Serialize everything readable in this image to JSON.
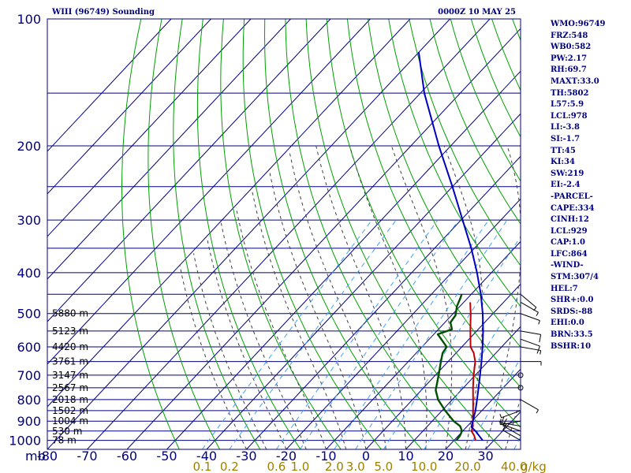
{
  "header": {
    "station": "WIII (96749) Sounding",
    "time": "0000Z 10 MAY 25"
  },
  "indices": [
    "WMO:96749",
    "FRZ:548",
    "WB0:582",
    "PW:2.17",
    "RH:69.7",
    "MAXT:33.0",
    "TH:5802",
    "L57:5.9",
    "LCL:978",
    "LI:-3.8",
    "SI:-1.7",
    "TT:45",
    "KI:34",
    "SW:219",
    "EI:-2.4",
    "-PARCEL-",
    "CAPE:334",
    "CINH:12",
    "LCL:929",
    "CAP:1.0",
    "LFC:864",
    "-WIND-",
    "STM:307/4",
    "HEL:7",
    "SHR+:0.0",
    "SRDS:-88",
    "EHI:0.0",
    "BRN:33.5",
    "BSHR:10"
  ],
  "colors": {
    "frame": "#000080",
    "isotherm": "#000080",
    "isobar": "#000080",
    "dry_adiabat": "#00a000",
    "moist_adiabat": "#404040",
    "mixing_ratio": "#40a0ff",
    "temperature": "#c00000",
    "dewpoint": "#005000",
    "parcel": "#0000c0",
    "wind": "#000000",
    "axis_text": "#000080",
    "mixing_text": "#a08000"
  },
  "chart_data": {
    "type": "line",
    "skew": "skew-T log-p",
    "xlabel": "",
    "ylabel": "mb",
    "pressure_ticks": [
      100,
      200,
      300,
      400,
      500,
      600,
      700,
      800,
      900,
      1000
    ],
    "pressure_range": [
      100,
      1050
    ],
    "temperature_ticks": [
      -80,
      -70,
      -60,
      -50,
      -40,
      -30,
      -20,
      -10,
      0,
      10,
      20,
      30
    ],
    "temperature_unit": "°C",
    "isobars": [
      100,
      150,
      200,
      250,
      300,
      350,
      400,
      450,
      500,
      550,
      600,
      650,
      700,
      750,
      800,
      850,
      900,
      950,
      1000
    ],
    "mixing_ratio_label": "g/kg",
    "mixing_ratio_ticks": [
      "0.1",
      "0.2",
      "0.6",
      "1.0",
      "2.0",
      "3.0",
      "5.0",
      "10.0",
      "20.0",
      "40.0"
    ],
    "mixing_ratio_values": [
      0.1,
      0.2,
      0.6,
      1.0,
      2.0,
      3.0,
      5.0,
      10.0,
      20.0,
      40.0
    ],
    "height_labels": [
      {
        "p": 1000,
        "label": "78 m"
      },
      {
        "p": 950,
        "label": "530 m"
      },
      {
        "p": 900,
        "label": "1004 m"
      },
      {
        "p": 850,
        "label": "1502 m"
      },
      {
        "p": 800,
        "label": "2018 m"
      },
      {
        "p": 750,
        "label": "2567 m"
      },
      {
        "p": 700,
        "label": "3147 m"
      },
      {
        "p": 650,
        "label": "3761 m"
      },
      {
        "p": 600,
        "label": "4420 m"
      },
      {
        "p": 550,
        "label": "5123 m"
      },
      {
        "p": 500,
        "label": "5880 m"
      }
    ],
    "series": [
      {
        "key": "temperature",
        "points": [
          {
            "p": 1000,
            "t": 25.4
          },
          {
            "p": 975,
            "t": 24.0
          },
          {
            "p": 950,
            "t": 22.2
          },
          {
            "p": 925,
            "t": 21.4
          },
          {
            "p": 900,
            "t": 20.2
          },
          {
            "p": 850,
            "t": 17.8
          },
          {
            "p": 800,
            "t": 15.2
          },
          {
            "p": 750,
            "t": 12.4
          },
          {
            "p": 700,
            "t": 9.6
          },
          {
            "p": 650,
            "t": 6.8
          },
          {
            "p": 620,
            "t": 4.4
          },
          {
            "p": 600,
            "t": 2.2
          },
          {
            "p": 550,
            "t": -1.6
          },
          {
            "p": 500,
            "t": -5.6
          },
          {
            "p": 470,
            "t": -8.4
          }
        ]
      },
      {
        "key": "dewpoint",
        "points": [
          {
            "p": 1000,
            "t": 20.6
          },
          {
            "p": 975,
            "t": 20.4
          },
          {
            "p": 950,
            "t": 19.8
          },
          {
            "p": 925,
            "t": 18.2
          },
          {
            "p": 900,
            "t": 15.4
          },
          {
            "p": 850,
            "t": 10.8
          },
          {
            "p": 800,
            "t": 6.4
          },
          {
            "p": 760,
            "t": 3.6
          },
          {
            "p": 700,
            "t": 0.8
          },
          {
            "p": 650,
            "t": -1.8
          },
          {
            "p": 620,
            "t": -3.4
          },
          {
            "p": 600,
            "t": -3.8
          },
          {
            "p": 575,
            "t": -7.0
          },
          {
            "p": 560,
            "t": -9.0
          },
          {
            "p": 545,
            "t": -6.6
          },
          {
            "p": 525,
            "t": -8.6
          },
          {
            "p": 505,
            "t": -9.0
          },
          {
            "p": 480,
            "t": -10.8
          },
          {
            "p": 460,
            "t": -11.8
          },
          {
            "p": 450,
            "t": -12.4
          }
        ]
      },
      {
        "key": "parcel",
        "points": [
          {
            "p": 1000,
            "t": 27.2
          },
          {
            "p": 950,
            "t": 23.2
          },
          {
            "p": 929,
            "t": 21.2
          },
          {
            "p": 900,
            "t": 20.2
          },
          {
            "p": 850,
            "t": 18.4
          },
          {
            "p": 800,
            "t": 16.2
          },
          {
            "p": 750,
            "t": 13.8
          },
          {
            "p": 700,
            "t": 11.2
          },
          {
            "p": 650,
            "t": 8.4
          },
          {
            "p": 600,
            "t": 5.2
          },
          {
            "p": 550,
            "t": 1.6
          },
          {
            "p": 500,
            "t": -2.6
          },
          {
            "p": 450,
            "t": -7.6
          },
          {
            "p": 400,
            "t": -13.6
          },
          {
            "p": 350,
            "t": -20.8
          },
          {
            "p": 300,
            "t": -29.6
          },
          {
            "p": 250,
            "t": -40.0
          },
          {
            "p": 200,
            "t": -53.0
          },
          {
            "p": 150,
            "t": -69.0
          },
          {
            "p": 120,
            "t": -80.0
          }
        ]
      }
    ],
    "wind_barbs": [
      {
        "p": 1000,
        "dir": 300,
        "spd": 10
      },
      {
        "p": 975,
        "dir": 300,
        "spd": 10
      },
      {
        "p": 950,
        "dir": 290,
        "spd": 10
      },
      {
        "p": 925,
        "dir": 280,
        "spd": 5
      },
      {
        "p": 900,
        "dir": 260,
        "spd": 5
      },
      {
        "p": 850,
        "dir": 250,
        "spd": 5
      },
      {
        "p": 800,
        "dir": 120,
        "spd": 5
      },
      {
        "p": 750,
        "dir": 0,
        "spd": 0
      },
      {
        "p": 700,
        "dir": 0,
        "spd": 0
      },
      {
        "p": 650,
        "dir": 90,
        "spd": 5
      },
      {
        "p": 600,
        "dir": 100,
        "spd": 5
      },
      {
        "p": 575,
        "dir": 110,
        "spd": 10
      },
      {
        "p": 550,
        "dir": 100,
        "spd": 10
      },
      {
        "p": 500,
        "dir": 110,
        "spd": 5
      },
      {
        "p": 470,
        "dir": 120,
        "spd": 5
      },
      {
        "p": 450,
        "dir": 130,
        "spd": 5
      }
    ]
  }
}
